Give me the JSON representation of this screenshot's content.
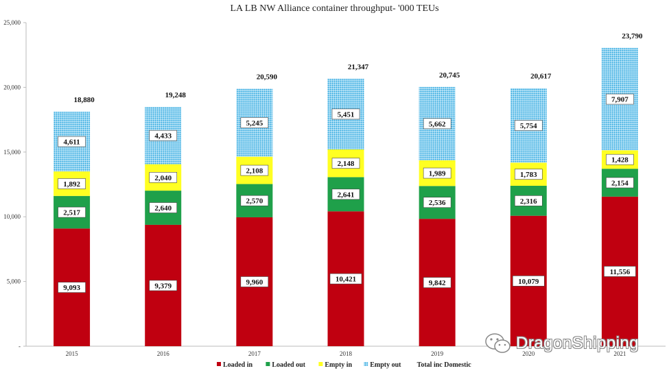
{
  "chart_data": {
    "type": "bar",
    "stacked": true,
    "title": "LA LB NW Alliance container throughput- '000 TEUs",
    "xlabel": "",
    "ylabel": "",
    "categories": [
      "2015",
      "2016",
      "2017",
      "2018",
      "2019",
      "2020",
      "2021"
    ],
    "ylim": [
      0,
      25000
    ],
    "yticks": [
      0,
      5000,
      10000,
      15000,
      20000,
      25000
    ],
    "ytick_labels": [
      "-",
      "5,000",
      "10,000",
      "15,000",
      "20,000",
      "25,000"
    ],
    "grid": false,
    "legend_position": "bottom",
    "series": [
      {
        "name": "Loaded in",
        "color": "#c00010",
        "values": [
          9093,
          9379,
          9960,
          10421,
          9842,
          10079,
          11556
        ]
      },
      {
        "name": "Loaded out",
        "color": "#1fa04a",
        "values": [
          2517,
          2640,
          2570,
          2641,
          2536,
          2316,
          2154
        ]
      },
      {
        "name": "Empty in",
        "color": "#ffff22",
        "values": [
          1892,
          2040,
          2108,
          2148,
          1989,
          1783,
          1428
        ]
      },
      {
        "name": "Empty out",
        "color": "#35b2e6",
        "pattern": "dotted",
        "values": [
          4611,
          4433,
          5245,
          5451,
          5662,
          5754,
          7907
        ]
      }
    ],
    "totals": {
      "name": "Total inc Domestic",
      "values": [
        18880,
        19248,
        20590,
        21347,
        20745,
        20617,
        23790
      ]
    }
  },
  "watermark": {
    "text": "DragonShipping",
    "icon": "wechat-icon"
  }
}
